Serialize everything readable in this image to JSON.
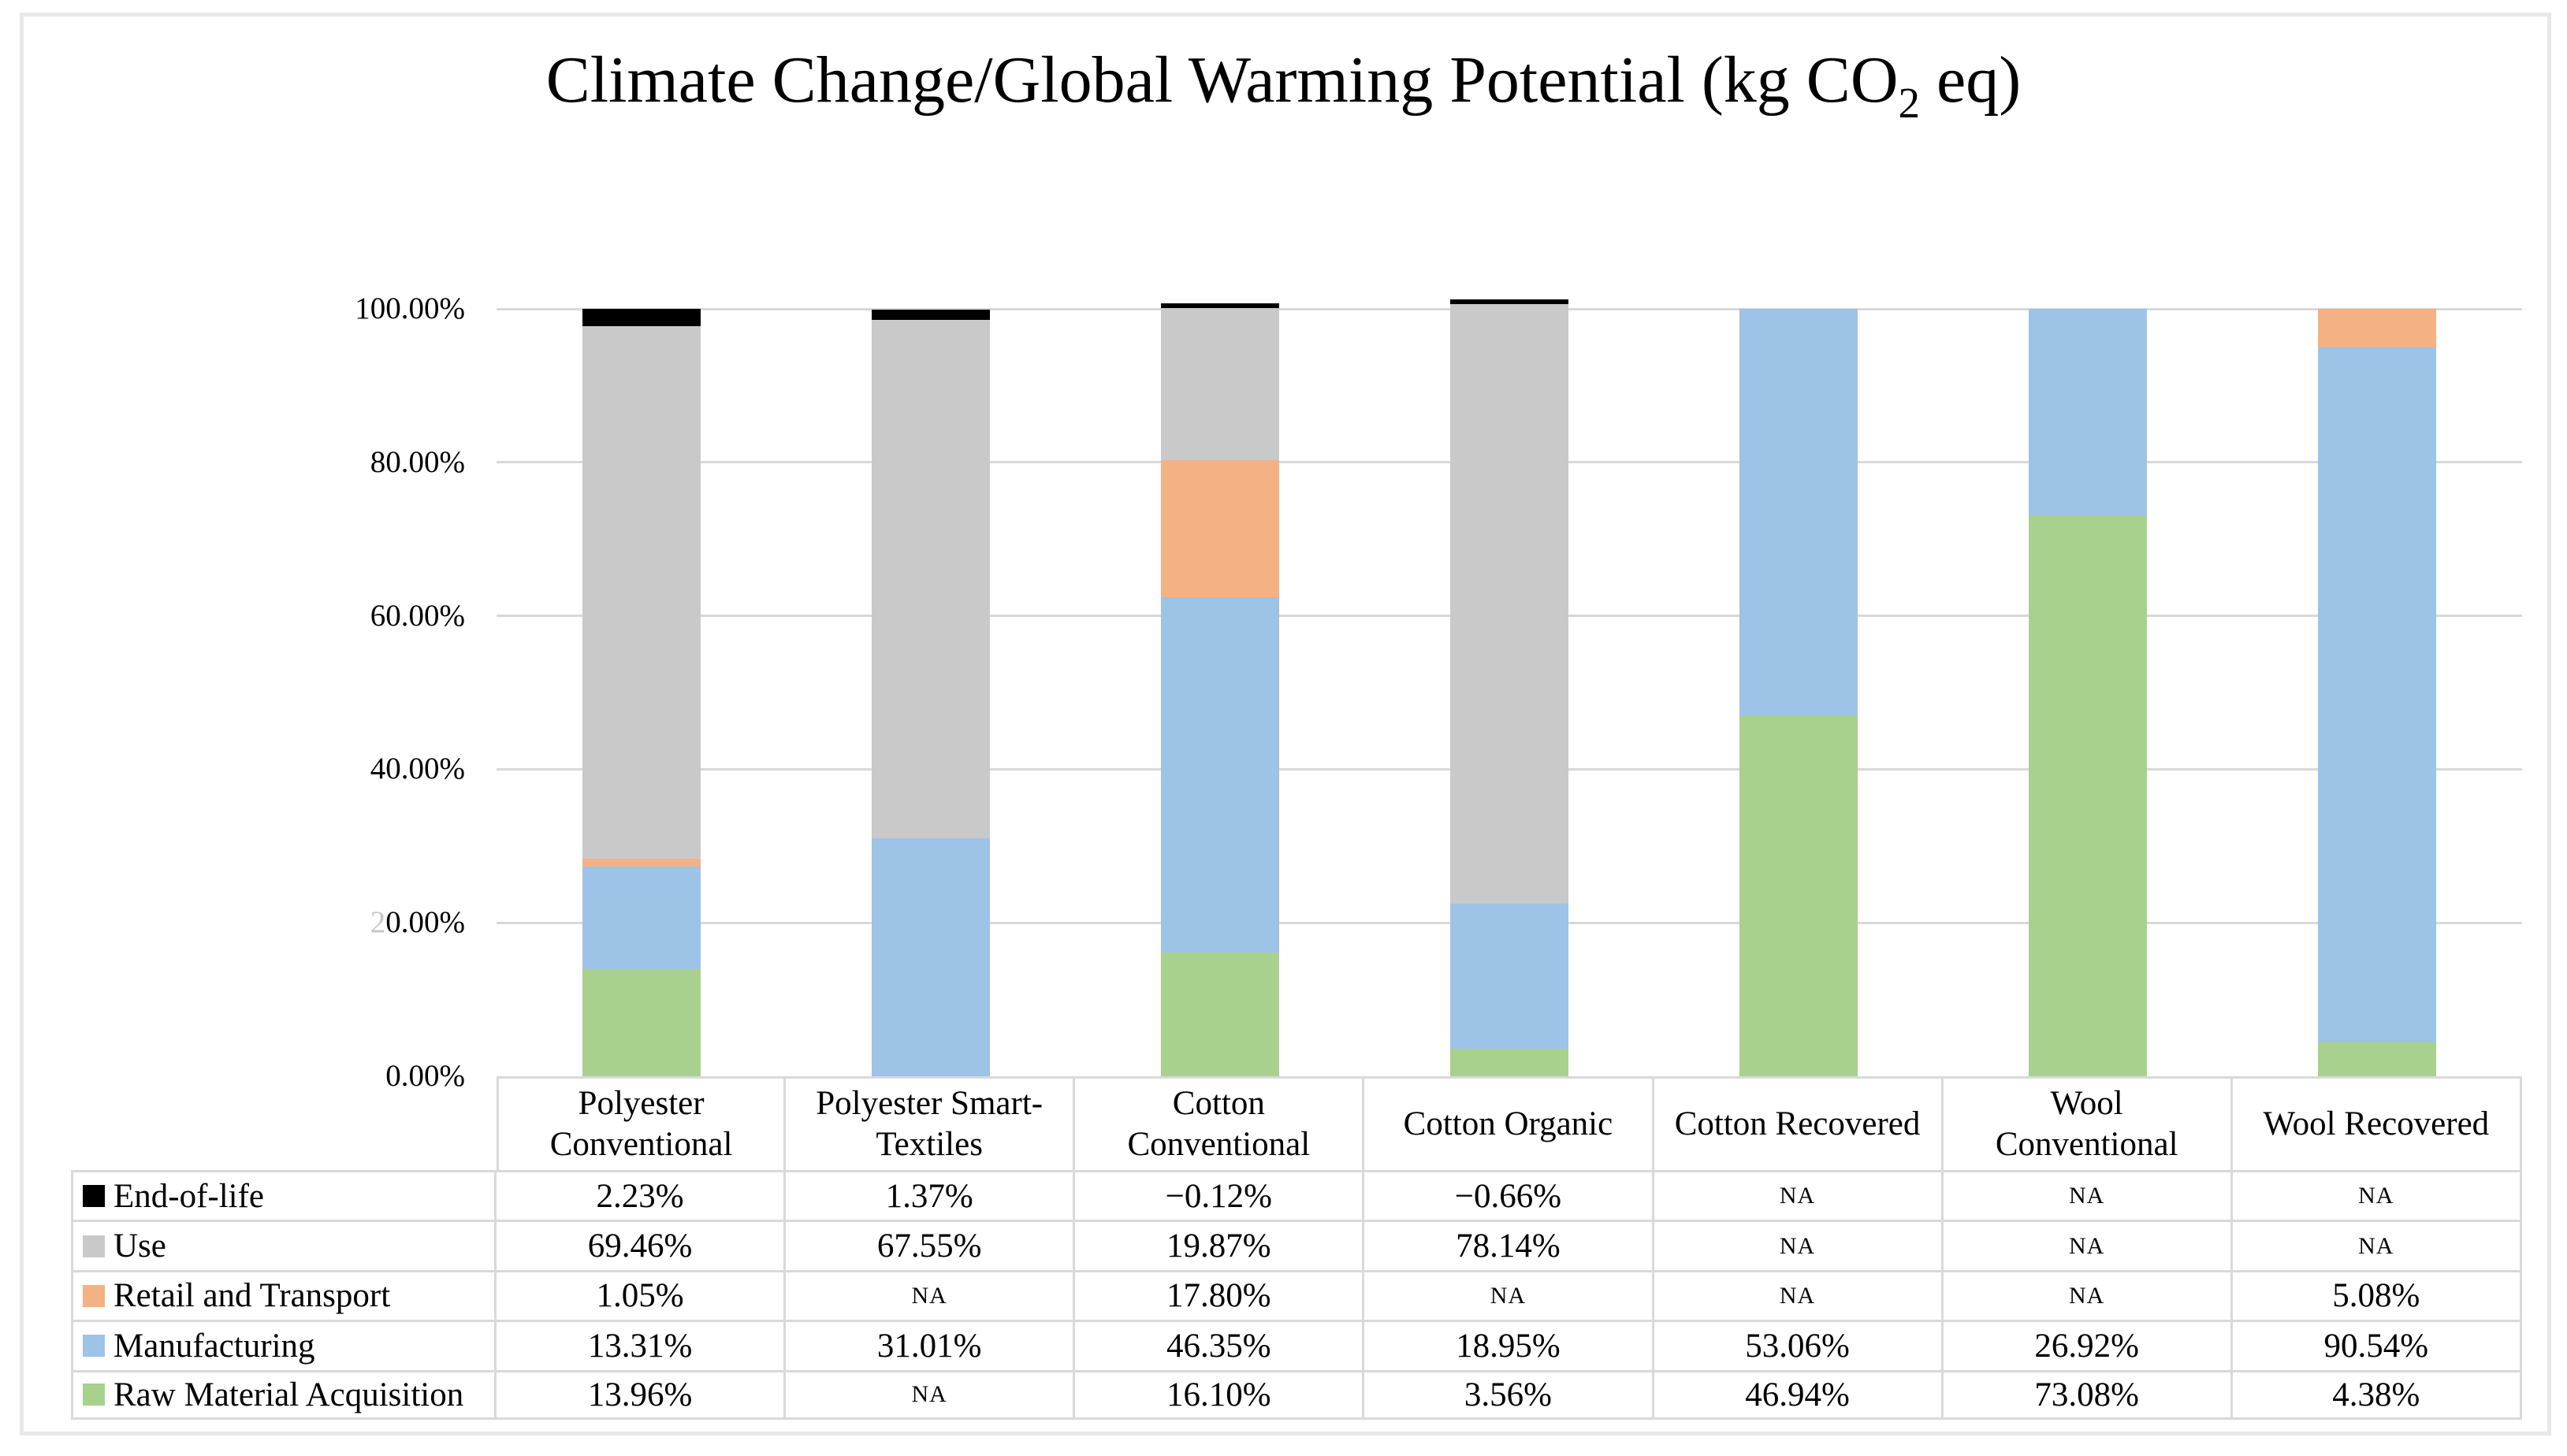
{
  "figure": {
    "title": {
      "text": "Climate Change/Global Warming Potential (kg CO2 eq)",
      "prefix": "Climate Change/Global Warming Potential (kg CO",
      "subscript": "2",
      "suffix": " eq)"
    }
  },
  "chart_data": {
    "type": "bar",
    "stacked": true,
    "title": "Climate Change/Global Warming Potential (kg CO2 eq)",
    "categories": [
      "Polyester Conventional",
      "Polyester Smart-Textiles",
      "Cotton Conventional",
      "Cotton Organic",
      "Cotton Recovered",
      "Wool Conventional",
      "Wool Recovered"
    ],
    "category_label_lines": [
      [
        "Polyester",
        "Conventional"
      ],
      [
        "Polyester Smart-",
        "Textiles"
      ],
      [
        "Cotton",
        "Conventional"
      ],
      [
        "Cotton Organic"
      ],
      [
        "Cotton Recovered"
      ],
      [
        "Wool",
        "Conventional"
      ],
      [
        "Wool Recovered"
      ]
    ],
    "series": [
      {
        "name": "End-of-life",
        "color": "#000000",
        "values": [
          "2.23%",
          "1.37%",
          "−0.12%",
          "−0.66%",
          "NA",
          "NA",
          "NA"
        ]
      },
      {
        "name": "Use",
        "color": "#C9C9C9",
        "values": [
          "69.46%",
          "67.55%",
          "19.87%",
          "78.14%",
          "NA",
          "NA",
          "NA"
        ]
      },
      {
        "name": "Retail and Transport",
        "color": "#F4B183",
        "values": [
          "1.05%",
          "NA",
          "17.80%",
          "NA",
          "NA",
          "NA",
          "5.08%"
        ]
      },
      {
        "name": "Manufacturing",
        "color": "#9DC3E6",
        "values": [
          "13.31%",
          "31.01%",
          "46.35%",
          "18.95%",
          "53.06%",
          "26.92%",
          "90.54%"
        ]
      },
      {
        "name": "Raw Material Acquisition",
        "color": "#A9D18E",
        "values": [
          "13.96%",
          "NA",
          "16.10%",
          "3.56%",
          "46.94%",
          "73.08%",
          "4.38%"
        ]
      }
    ],
    "stack_order_bottom_to_top": [
      "Raw Material Acquisition",
      "Manufacturing",
      "Retail and Transport",
      "Use",
      "End-of-life"
    ],
    "y_axis": {
      "ticks": [
        "100.00%",
        "80.00%",
        "60.00%",
        "40.00%",
        "20.00%",
        "0.00%"
      ],
      "range": [
        0,
        100
      ],
      "gridlines": true
    },
    "legend_position": "table-left-column",
    "colors": {
      "grid": "#D9D9D9",
      "table_border": "#D9D9D9",
      "frame": "#E8E8E8",
      "text": "#000000"
    }
  }
}
